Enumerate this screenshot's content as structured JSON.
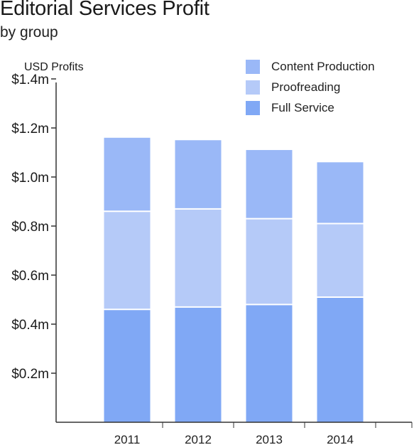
{
  "chart_data": {
    "type": "bar",
    "stacked": true,
    "title": "Editorial Services Profit",
    "subtitle": "by group",
    "ylabel": "USD Profits",
    "xlabel": "",
    "categories": [
      "2011",
      "2012",
      "2013",
      "2014"
    ],
    "yticks": [
      {
        "value": 0.2,
        "label": "$0.2m"
      },
      {
        "value": 0.4,
        "label": "$0.4m"
      },
      {
        "value": 0.6,
        "label": "$0.6m"
      },
      {
        "value": 0.8,
        "label": "$0.8m"
      },
      {
        "value": 1.0,
        "label": "$1.0m"
      },
      {
        "value": 1.2,
        "label": "$1.2m"
      },
      {
        "value": 1.4,
        "label": "$1.4m"
      }
    ],
    "ylim": [
      0,
      1.45
    ],
    "grid": false,
    "legend_position": "top-right",
    "series": [
      {
        "name": "Full Service",
        "color": "#80a8f5",
        "values": [
          0.46,
          0.47,
          0.48,
          0.51
        ]
      },
      {
        "name": "Proofreading",
        "color": "#b5caf8",
        "values": [
          0.4,
          0.4,
          0.35,
          0.3
        ]
      },
      {
        "name": "Content Production",
        "color": "#9ab8f7",
        "values": [
          0.3,
          0.28,
          0.28,
          0.25
        ]
      }
    ],
    "legend_order": [
      "Content Production",
      "Proofreading",
      "Full Service"
    ]
  }
}
